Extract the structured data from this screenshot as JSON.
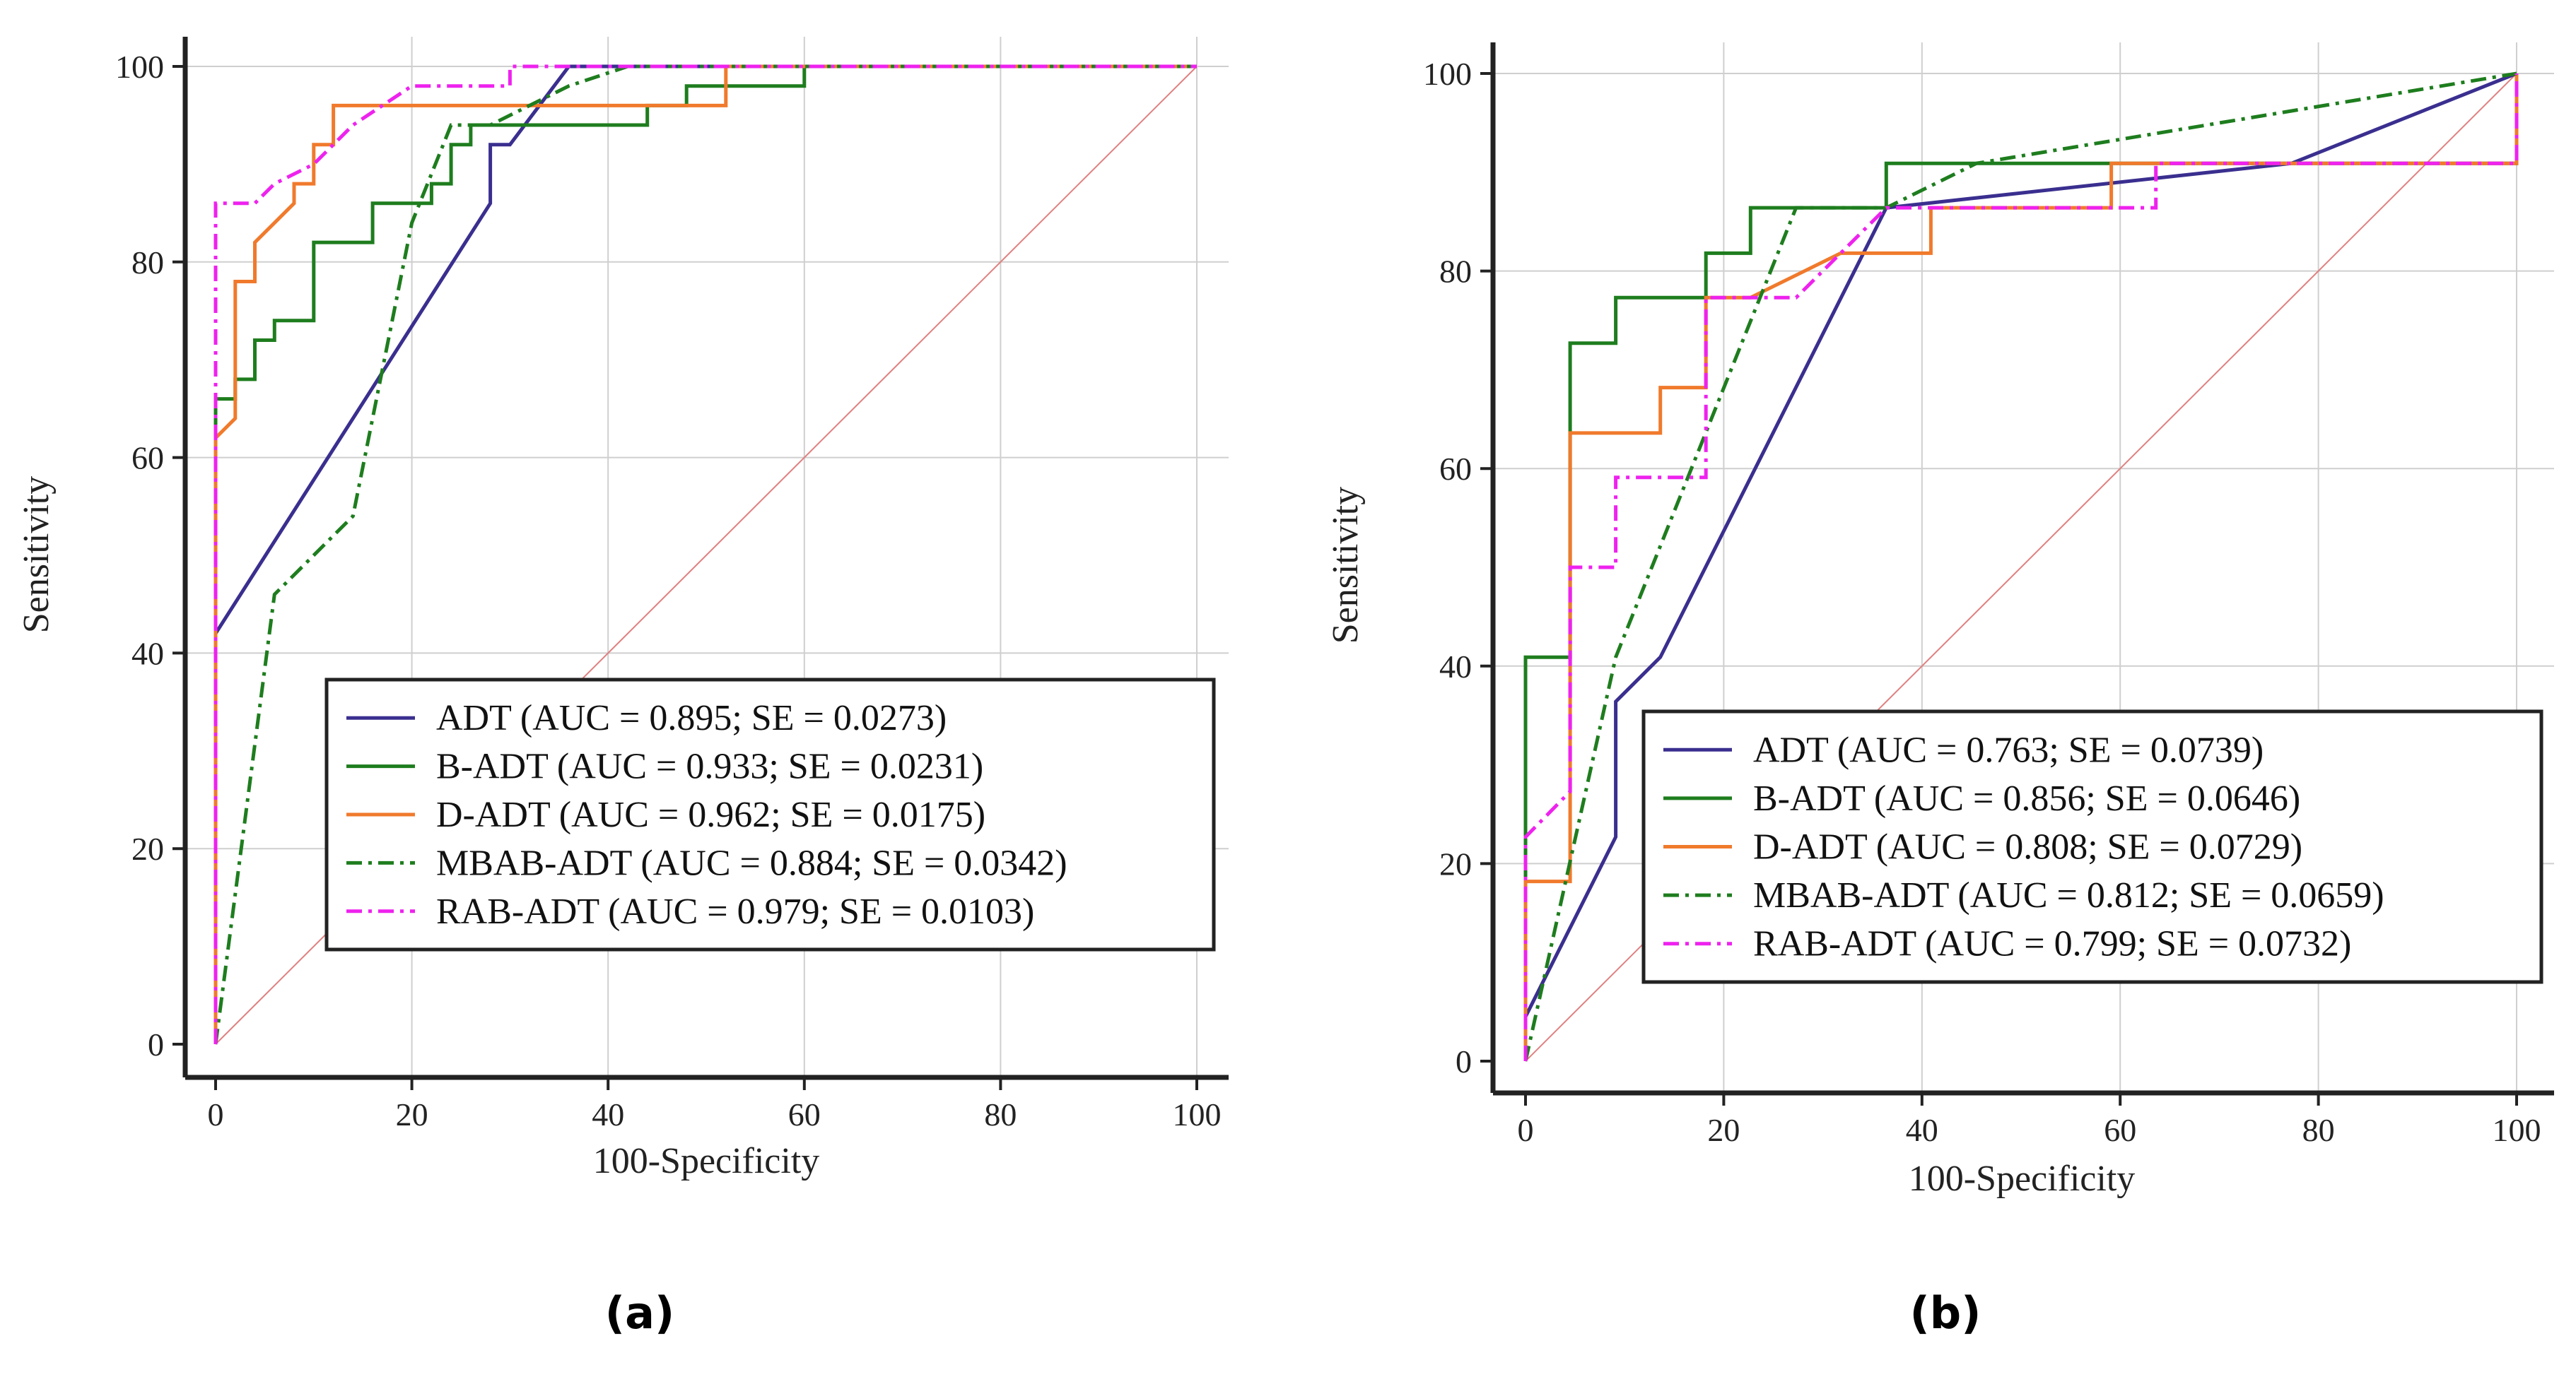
{
  "colors": {
    "ADT": "#3a2f8f",
    "B-ADT": "#1e7d1e",
    "D-ADT": "#f07a2c",
    "MBAB-ADT": "#1e7d1e",
    "RAB-ADT": "#ee22ee",
    "reference": "#e08080",
    "grid": "#cfcfcf"
  },
  "chart_data": [
    {
      "type": "line",
      "panel_label": "(a)",
      "xlabel": "100-Specificity",
      "ylabel": "Sensitivity",
      "xlim": [
        0,
        100
      ],
      "ylim": [
        0,
        100
      ],
      "xticks": [
        0,
        20,
        40,
        60,
        80,
        100
      ],
      "yticks": [
        0,
        20,
        40,
        60,
        80,
        100
      ],
      "grid": true,
      "legend_position": "bottom-right",
      "legend": [
        "ADT (AUC = 0.895; SE = 0.0273)",
        "B-ADT (AUC = 0.933; SE = 0.0231)",
        "D-ADT (AUC = 0.962; SE = 0.0175)",
        "MBAB-ADT (AUC = 0.884; SE = 0.0342)",
        "RAB-ADT (AUC = 0.979; SE = 0.0103)"
      ],
      "series": [
        {
          "name": "ADT",
          "style": "solid",
          "x": [
            0,
            0,
            28,
            28,
            30,
            36,
            100
          ],
          "y": [
            0,
            42,
            86,
            92,
            92,
            100,
            100
          ]
        },
        {
          "name": "B-ADT",
          "style": "solid",
          "x": [
            0,
            0,
            2,
            2,
            4,
            4,
            6,
            6,
            10,
            10,
            16,
            16,
            20,
            20,
            22,
            22,
            24,
            24,
            26,
            26,
            32,
            32,
            44,
            44,
            48,
            48,
            60,
            60,
            100
          ],
          "y": [
            0,
            66,
            66,
            68,
            68,
            72,
            72,
            74,
            74,
            82,
            82,
            86,
            86,
            86,
            86,
            88,
            88,
            92,
            92,
            94,
            94,
            94,
            94,
            96,
            96,
            98,
            98,
            100,
            100
          ],
          "note_style": "step"
        },
        {
          "name": "D-ADT",
          "style": "solid",
          "x": [
            0,
            0,
            2,
            2,
            4,
            4,
            8,
            8,
            10,
            10,
            12,
            12,
            52,
            52,
            100
          ],
          "y": [
            0,
            62,
            64,
            78,
            78,
            82,
            86,
            88,
            88,
            92,
            92,
            96,
            96,
            100,
            100
          ]
        },
        {
          "name": "MBAB-ADT",
          "style": "dashdot",
          "x": [
            0,
            6,
            14,
            20,
            24,
            28,
            36,
            42,
            100
          ],
          "y": [
            0,
            46,
            54,
            84,
            94,
            94,
            98,
            100,
            100
          ]
        },
        {
          "name": "RAB-ADT",
          "style": "dashdot",
          "x": [
            0,
            0,
            4,
            6,
            10,
            14,
            20,
            24,
            30,
            30,
            100
          ],
          "y": [
            0,
            86,
            86,
            88,
            90,
            94,
            98,
            98,
            98,
            100,
            100
          ]
        }
      ]
    },
    {
      "type": "line",
      "panel_label": "(b)",
      "xlabel": "100-Specificity",
      "ylabel": "Sensitivity",
      "xlim": [
        0,
        100
      ],
      "ylim": [
        0,
        100
      ],
      "xticks": [
        0,
        20,
        40,
        60,
        80,
        100
      ],
      "yticks": [
        0,
        20,
        40,
        60,
        80,
        100
      ],
      "grid": true,
      "legend_position": "bottom-right",
      "legend": [
        "ADT (AUC = 0.763; SE = 0.0739)",
        "B-ADT (AUC = 0.856; SE = 0.0646)",
        "D-ADT (AUC = 0.808; SE = 0.0729)",
        "MBAB-ADT (AUC = 0.812; SE = 0.0659)",
        "RAB-ADT (AUC = 0.799; SE = 0.0732)"
      ],
      "series": [
        {
          "name": "ADT",
          "style": "solid",
          "x": [
            0,
            0,
            9.1,
            9.1,
            13.6,
            36.4,
            77.3,
            100
          ],
          "y": [
            0,
            4.5,
            22.7,
            36.4,
            40.9,
            86.4,
            90.9,
            100
          ]
        },
        {
          "name": "B-ADT",
          "style": "solid",
          "x": [
            0,
            0,
            4.5,
            4.5,
            9.1,
            9.1,
            18.2,
            18.2,
            22.7,
            22.7,
            36.4,
            36.4,
            100,
            100
          ],
          "y": [
            0,
            40.9,
            40.9,
            72.7,
            72.7,
            77.3,
            77.3,
            81.8,
            81.8,
            86.4,
            86.4,
            90.9,
            90.9,
            100
          ]
        },
        {
          "name": "D-ADT",
          "style": "solid",
          "x": [
            0,
            0,
            4.5,
            4.5,
            13.6,
            13.6,
            18.2,
            18.2,
            22.7,
            31.8,
            40.9,
            40.9,
            59.1,
            59.1,
            100,
            100
          ],
          "y": [
            0,
            18.2,
            18.2,
            63.6,
            63.6,
            68.2,
            68.2,
            77.3,
            77.3,
            81.8,
            81.8,
            86.4,
            86.4,
            90.9,
            90.9,
            100
          ]
        },
        {
          "name": "MBAB-ADT",
          "style": "dashdot",
          "x": [
            0,
            9.1,
            27.3,
            36.4,
            45.5,
            100
          ],
          "y": [
            0,
            40.9,
            86.4,
            86.4,
            90.9,
            100
          ]
        },
        {
          "name": "RAB-ADT",
          "style": "dashdot",
          "x": [
            0,
            0,
            4.5,
            4.5,
            9.1,
            9.1,
            18.2,
            18.2,
            27.3,
            31.8,
            36.4,
            63.6,
            63.6,
            100,
            100
          ],
          "y": [
            0,
            22.7,
            27.3,
            50,
            50,
            59.1,
            59.1,
            77.3,
            77.3,
            81.8,
            86.4,
            86.4,
            90.9,
            90.9,
            100
          ]
        }
      ]
    }
  ]
}
